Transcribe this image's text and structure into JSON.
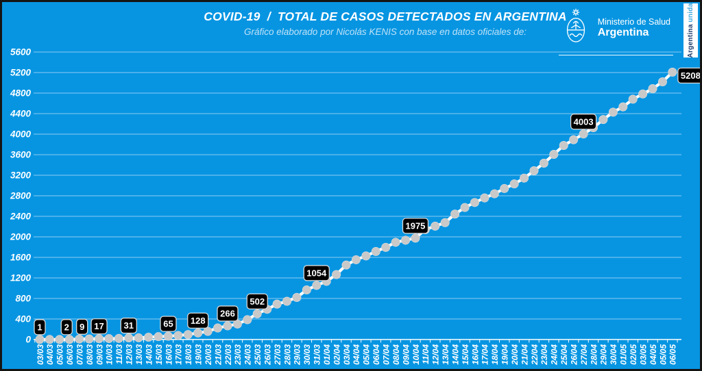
{
  "header": {
    "title": "COVID-19  /  TOTAL DE CASOS DETECTADOS EN ARGENTINA",
    "subtitle": "Gráfico elaborado por Nicolás KENIS con base en datos oficiales de:",
    "ministry": {
      "line1": "Ministerio de Salud",
      "line2": "Argentina"
    },
    "banner": {
      "bold": "Argentina",
      "light": "unida"
    }
  },
  "chart_data": {
    "type": "line",
    "title": "COVID-19 / TOTAL DE CASOS DETECTADOS EN ARGENTINA",
    "xlabel": "",
    "ylabel": "",
    "ylim": [
      0,
      5600
    ],
    "ytick_step": 400,
    "grid": true,
    "x": [
      "03/03",
      "04/03",
      "05/03",
      "06/03",
      "07/03",
      "08/03",
      "09/03",
      "10/03",
      "11/03",
      "12/03",
      "13/03",
      "14/03",
      "15/03",
      "16/03",
      "17/03",
      "18/03",
      "19/03",
      "20/03",
      "21/03",
      "22/03",
      "23/03",
      "24/03",
      "25/03",
      "26/03",
      "27/03",
      "28/03",
      "29/03",
      "30/03",
      "31/03",
      "01/04",
      "02/04",
      "03/04",
      "04/04",
      "05/04",
      "06/04",
      "07/04",
      "08/04",
      "09/04",
      "10/04",
      "11/04",
      "12/04",
      "13/04",
      "14/04",
      "15/04",
      "16/04",
      "17/04",
      "18/04",
      "19/04",
      "20/04",
      "21/04",
      "22/04",
      "23/04",
      "24/04",
      "25/04",
      "26/04",
      "27/04",
      "28/04",
      "29/04",
      "30/04",
      "01/05",
      "02/05",
      "03/05",
      "04/05",
      "05/05",
      "06/05"
    ],
    "series": [
      {
        "name": "Total de casos detectados",
        "values": [
          1,
          1,
          1,
          2,
          9,
          12,
          17,
          19,
          21,
          31,
          34,
          45,
          56,
          65,
          79,
          97,
          128,
          158,
          225,
          266,
          301,
          387,
          502,
          589,
          690,
          745,
          820,
          966,
          1054,
          1133,
          1265,
          1451,
          1554,
          1628,
          1715,
          1795,
          1894,
          1934,
          1975,
          2142,
          2208,
          2277,
          2443,
          2571,
          2669,
          2758,
          2839,
          2941,
          3031,
          3144,
          3288,
          3435,
          3607,
          3780,
          3892,
          4003,
          4127,
          4285,
          4428,
          4532,
          4681,
          4783,
          4887,
          5020,
          5208
        ]
      }
    ],
    "labeled_points": [
      {
        "date": "03/03",
        "value": 1
      },
      {
        "date": "06/03",
        "value": 2,
        "dx": -4
      },
      {
        "date": "07/03",
        "value": 9,
        "dx": 4
      },
      {
        "date": "09/03",
        "value": 17
      },
      {
        "date": "12/03",
        "value": 31
      },
      {
        "date": "16/03",
        "value": 65
      },
      {
        "date": "19/03",
        "value": 128
      },
      {
        "date": "22/03",
        "value": 266
      },
      {
        "date": "25/03",
        "value": 502
      },
      {
        "date": "31/03",
        "value": 1054
      },
      {
        "date": "10/04",
        "value": 1975
      },
      {
        "date": "27/04",
        "value": 4003
      },
      {
        "date": "06/05",
        "value": 5208,
        "side": "right"
      }
    ],
    "legend": null,
    "colors": {
      "background": "#0795e2",
      "grid": "#8fccf0",
      "axis": "#ffffff",
      "line": "#ffffff",
      "marker": "#c9c9c9",
      "label_bg": "#000000",
      "label_border": "#d9d9d9",
      "label_text": "#ffffff"
    }
  }
}
